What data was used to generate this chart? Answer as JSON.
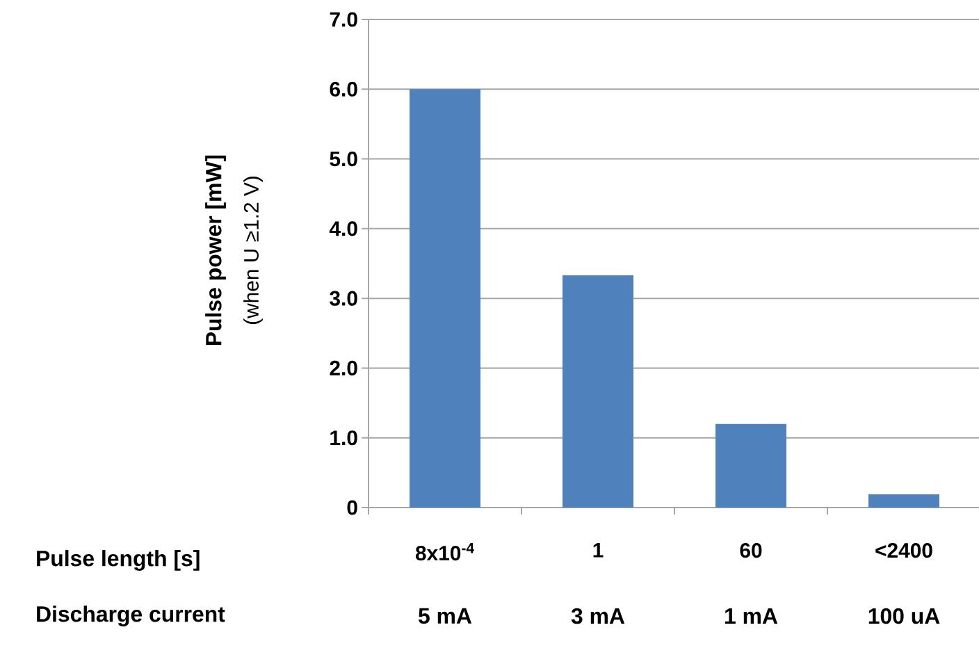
{
  "chart_data": {
    "type": "bar",
    "ylabel": "Pulse power [mW]",
    "categories": [
      "8x10$^{-4}$",
      "1",
      "60",
      "<2400"
    ],
    "values": [
      6.0,
      3.33,
      1.2,
      0.19
    ],
    "color": "#4f81bd",
    "ylim": [
      0,
      7
    ],
    "yticks": [
      0,
      {
        "value": 1,
        "label": "1.0"
      },
      {
        "value": 2,
        "label": "2.0"
      },
      {
        "value": 3,
        "label": "3.0"
      },
      {
        "value": 4,
        "label": "4.0"
      },
      {
        "value": 5,
        "label": "5.0"
      },
      {
        "value": 6,
        "label": "6.0"
      },
      {
        "value": 7,
        "label": "7.0"
      }
    ],
    "grid": "y",
    "annotations": [
      "(when U ≥1.2 V)",
      "Pulse length [s]",
      "Discharge current",
      "5 mA",
      "3 mA",
      "1 mA",
      "100 uA"
    ]
  }
}
